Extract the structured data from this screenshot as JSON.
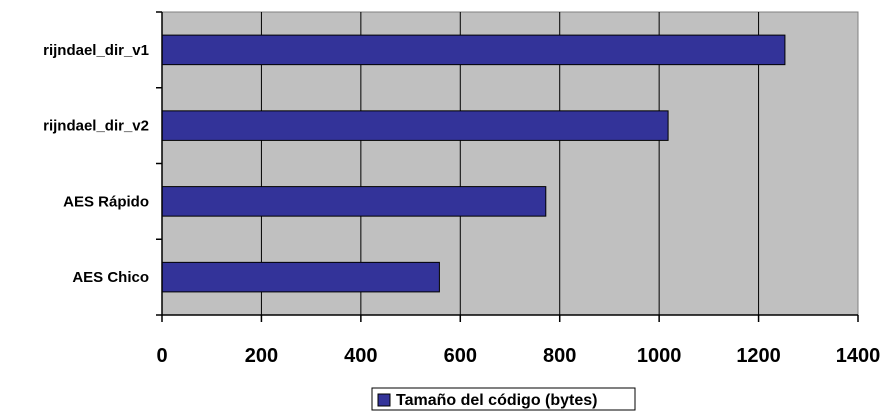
{
  "chart_data": {
    "type": "bar",
    "orientation": "horizontal",
    "categories": [
      "rijndael_dir_v1",
      "rijndael_dir_v2",
      "AES Rápido",
      "AES Chico"
    ],
    "series": [
      {
        "name": "Tamaño del código (bytes)",
        "values": [
          1253,
          1018,
          772,
          558
        ],
        "color": "#333399"
      }
    ],
    "xlim": [
      0,
      1400
    ],
    "xticks": [
      0,
      200,
      400,
      600,
      800,
      1000,
      1200,
      1400
    ],
    "grid": true,
    "plot_background": "#c0c0c0",
    "legend_position": "bottom"
  }
}
